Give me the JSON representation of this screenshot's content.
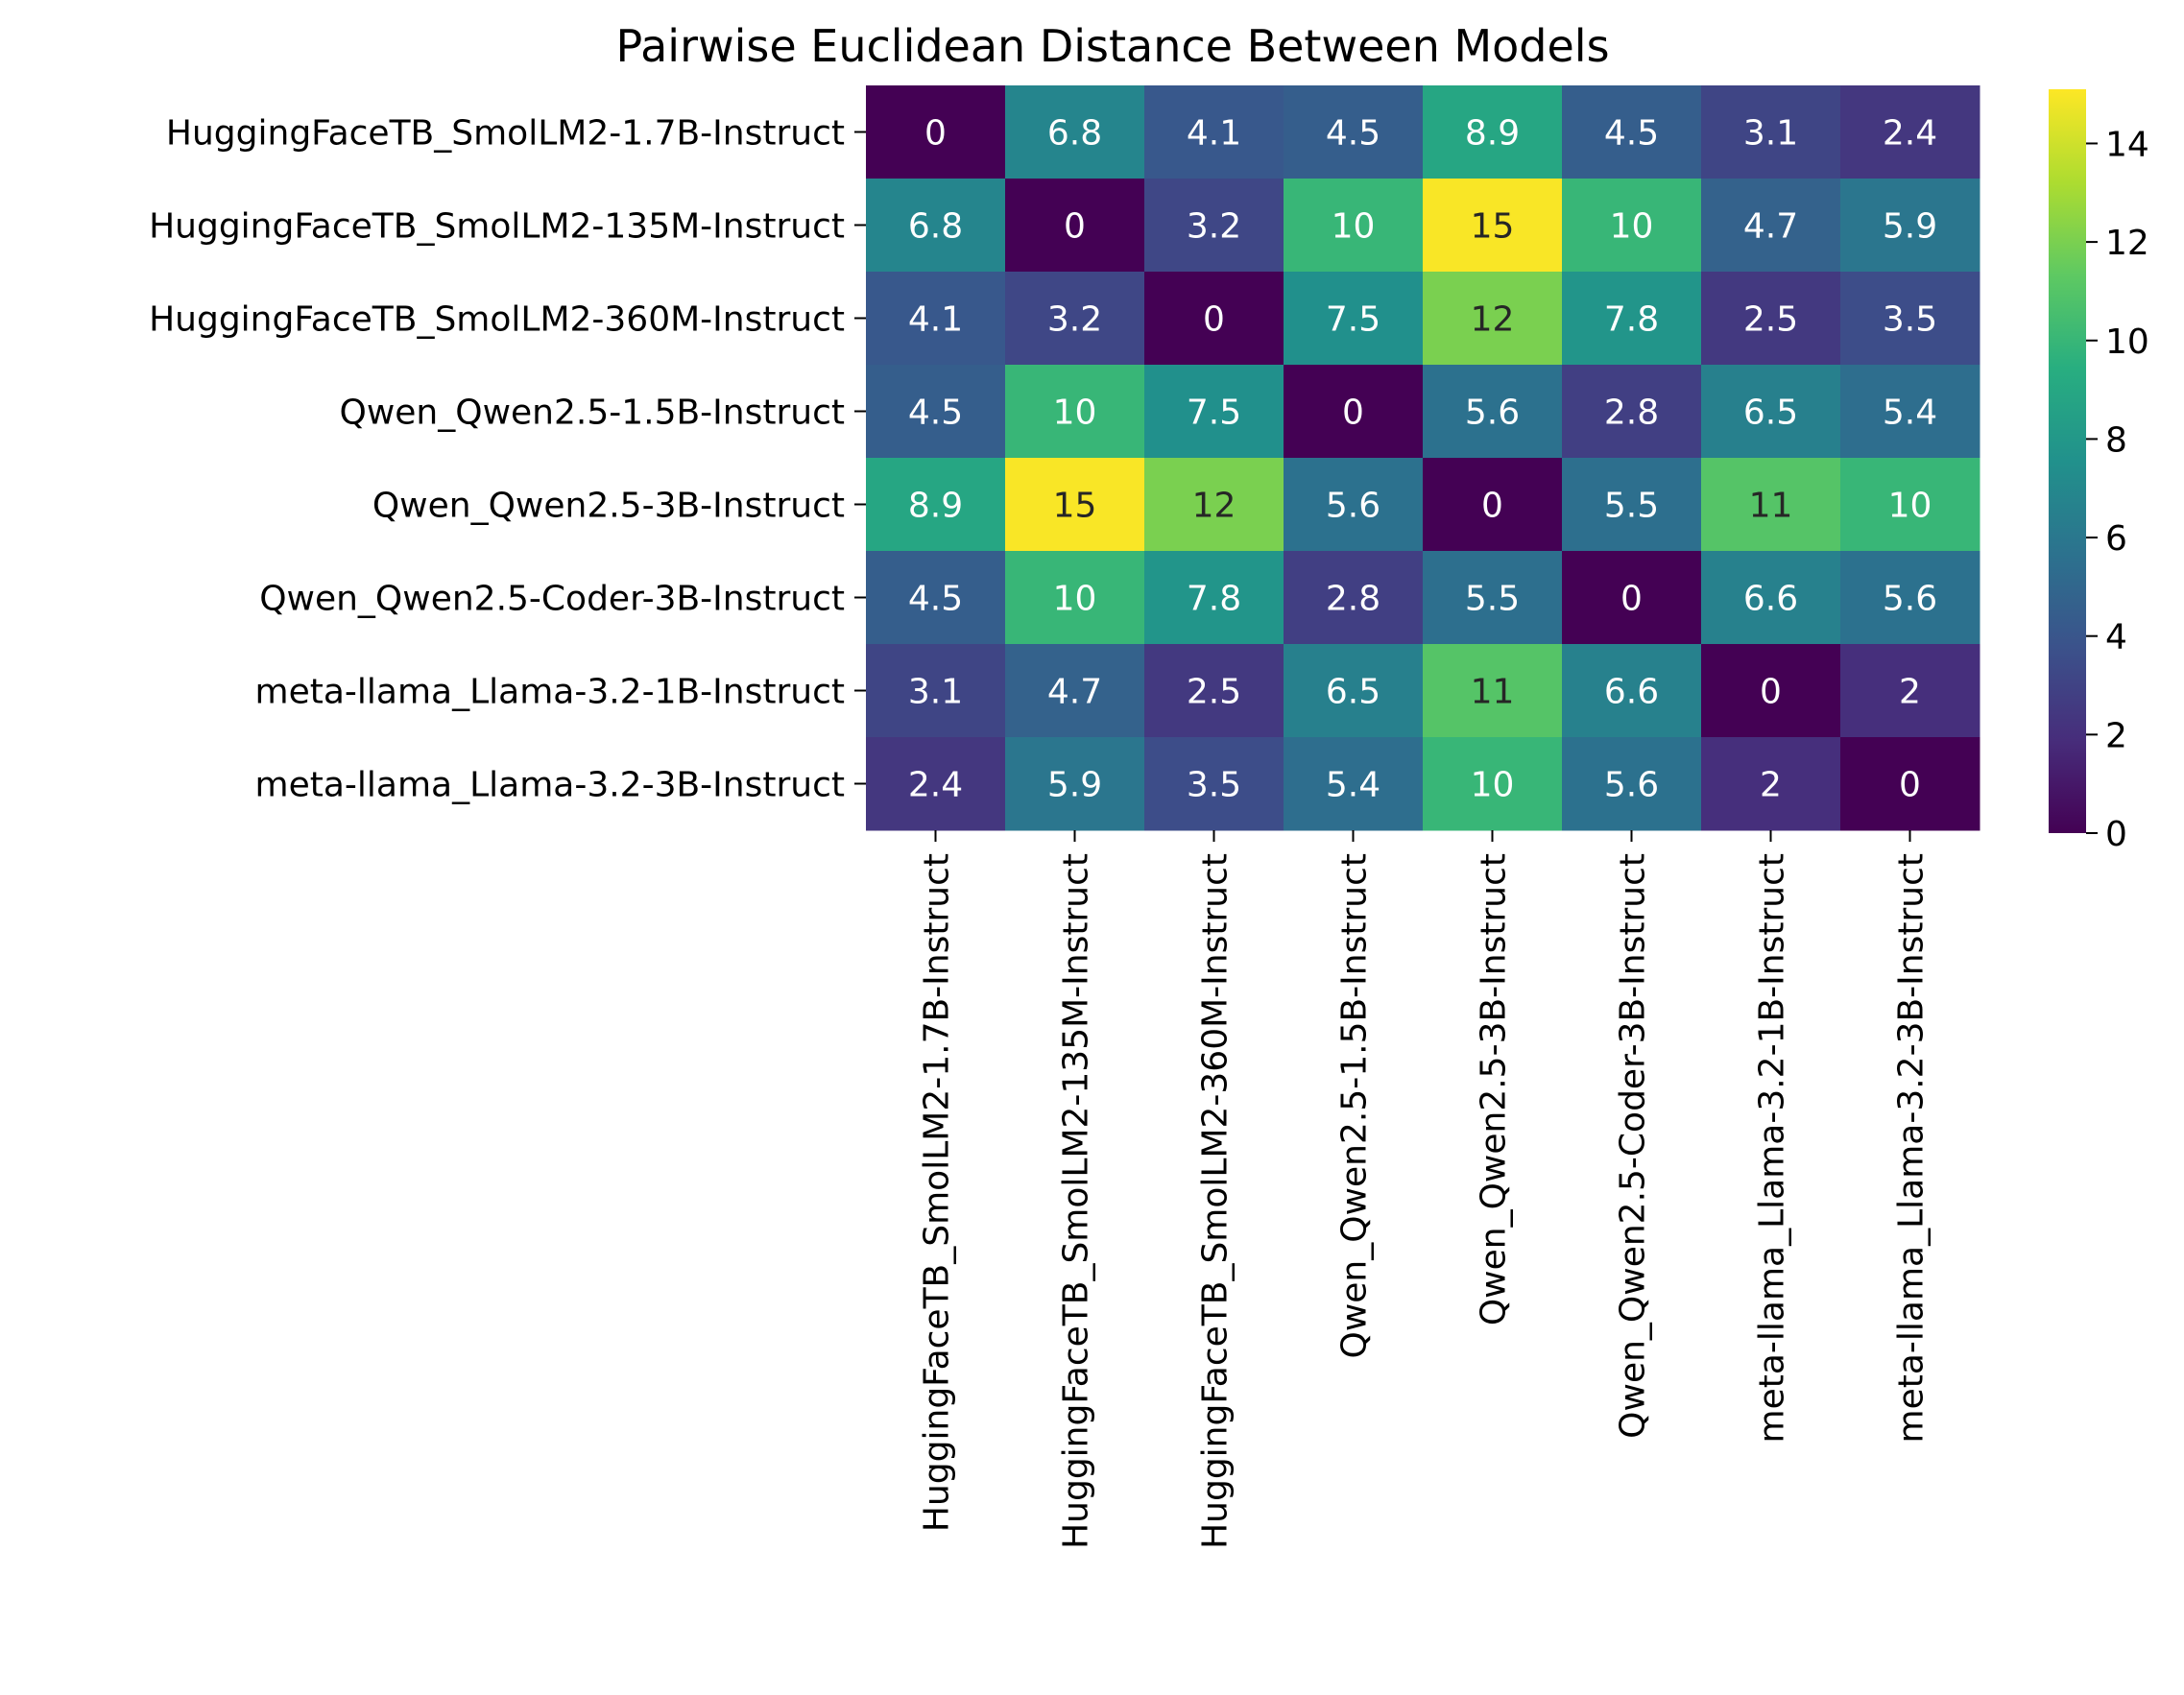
{
  "chart_data": {
    "type": "heatmap",
    "title": "Pairwise Euclidean Distance Between Models",
    "rows": [
      "HuggingFaceTB_SmolLM2-1.7B-Instruct",
      "HuggingFaceTB_SmolLM2-135M-Instruct",
      "HuggingFaceTB_SmolLM2-360M-Instruct",
      "Qwen_Qwen2.5-1.5B-Instruct",
      "Qwen_Qwen2.5-3B-Instruct",
      "Qwen_Qwen2.5-Coder-3B-Instruct",
      "meta-llama_Llama-3.2-1B-Instruct",
      "meta-llama_Llama-3.2-3B-Instruct"
    ],
    "columns": [
      "HuggingFaceTB_SmolLM2-1.7B-Instruct",
      "HuggingFaceTB_SmolLM2-135M-Instruct",
      "HuggingFaceTB_SmolLM2-360M-Instruct",
      "Qwen_Qwen2.5-1.5B-Instruct",
      "Qwen_Qwen2.5-3B-Instruct",
      "Qwen_Qwen2.5-Coder-3B-Instruct",
      "meta-llama_Llama-3.2-1B-Instruct",
      "meta-llama_Llama-3.2-3B-Instruct"
    ],
    "values": [
      [
        0,
        6.8,
        4.1,
        4.5,
        8.9,
        4.5,
        3.1,
        2.4
      ],
      [
        6.8,
        0,
        3.2,
        10,
        15,
        10,
        4.7,
        5.9
      ],
      [
        4.1,
        3.2,
        0,
        7.5,
        12,
        7.8,
        2.5,
        3.5
      ],
      [
        4.5,
        10,
        7.5,
        0,
        5.6,
        2.8,
        6.5,
        5.4
      ],
      [
        8.9,
        15,
        12,
        5.6,
        0,
        5.5,
        11,
        10
      ],
      [
        4.5,
        10,
        7.8,
        2.8,
        5.5,
        0,
        6.6,
        5.6
      ],
      [
        3.1,
        4.7,
        2.5,
        6.5,
        11,
        6.6,
        0,
        2
      ],
      [
        2.4,
        5.9,
        3.5,
        5.4,
        10,
        5.6,
        2,
        0
      ]
    ],
    "colormap": "viridis",
    "colorbar": {
      "min": 0,
      "max": 15.1,
      "ticks": [
        0,
        2,
        4,
        6,
        8,
        10,
        12,
        14
      ]
    },
    "annotations": true,
    "grid": false
  }
}
